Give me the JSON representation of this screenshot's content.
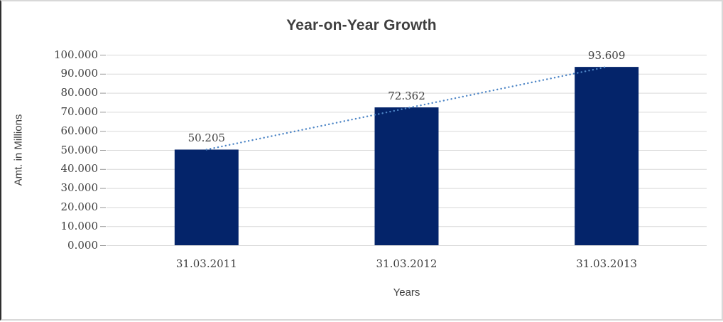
{
  "chart_data": {
    "type": "bar",
    "title": "Year-on-Year Growth",
    "xlabel": "Years",
    "ylabel": "Amt. in Millions",
    "categories": [
      "31.03.2011",
      "31.03.2012",
      "31.03.2013"
    ],
    "values": [
      50.205,
      72.362,
      93.609
    ],
    "data_labels": [
      "50.205",
      "72.362",
      "93.609"
    ],
    "ylim": [
      0,
      100
    ],
    "ytick_step": 10,
    "ytick_labels": [
      "0.000",
      "10.000",
      "20.000",
      "30.000",
      "40.000",
      "50.000",
      "60.000",
      "70.000",
      "80.000",
      "90.000",
      "100.000"
    ],
    "grid": true,
    "legend_position": "none",
    "trendline": {
      "type": "linear",
      "style": "dotted",
      "color": "#4e86c6"
    },
    "colors": {
      "bar": "#04246a",
      "gridline": "#d9d9d9",
      "tick_mark": "#9a9a9a",
      "text": "#3f3f3f",
      "title": "#3f3f3f",
      "background": "#ffffff"
    }
  }
}
